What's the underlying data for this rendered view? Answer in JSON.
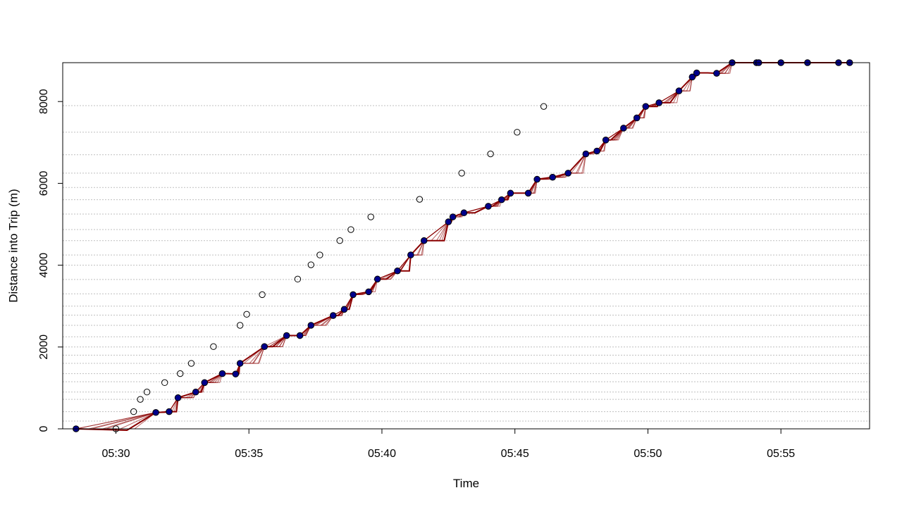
{
  "chart_data": {
    "type": "line",
    "title": "",
    "xlabel": "Time",
    "ylabel": "Distance into Trip (m)",
    "x_unit": "time of day (HH:MM)",
    "xlim": [
      "05:28:00",
      "05:58:20"
    ],
    "ylim": [
      0,
      8950
    ],
    "x_ticks": [
      "05:30",
      "05:35",
      "05:40",
      "05:45",
      "05:50",
      "05:55"
    ],
    "y_ticks": [
      0,
      2000,
      4000,
      6000,
      8000
    ],
    "y_tick_labels": [
      "0",
      "2000",
      "4000",
      "6000",
      "8000"
    ],
    "grid": "horizontal dotted lines at stop distances",
    "legend": "none",
    "colors": {
      "observations": "#00008b",
      "observation_outline": "#000000",
      "particle_paths": "#8b0000",
      "schedule_points": "#000000",
      "grid": "#bfbfbf",
      "frame": "#000000"
    },
    "stop_distances": [
      0,
      190,
      420,
      720,
      900,
      1150,
      1350,
      1600,
      1800,
      2000,
      2250,
      2530,
      2780,
      3000,
      3300,
      3650,
      4000,
      4250,
      4600,
      4870,
      5250,
      5600,
      5900,
      6250,
      6700,
      7250,
      7900,
      8950
    ],
    "series": [
      {
        "type": "scatter",
        "points": [
          {
            "t": "05:28:30",
            "d": 0
          },
          {
            "t": "05:31:30",
            "d": 400
          },
          {
            "t": "05:32:00",
            "d": 420
          },
          {
            "t": "05:32:20",
            "d": 760
          },
          {
            "t": "05:33:00",
            "d": 900
          },
          {
            "t": "05:33:20",
            "d": 1130
          },
          {
            "t": "05:34:00",
            "d": 1350
          },
          {
            "t": "05:34:30",
            "d": 1340
          },
          {
            "t": "05:34:40",
            "d": 1600
          },
          {
            "t": "05:35:35",
            "d": 2010
          },
          {
            "t": "05:36:25",
            "d": 2280
          },
          {
            "t": "05:36:55",
            "d": 2280
          },
          {
            "t": "05:37:20",
            "d": 2530
          },
          {
            "t": "05:38:10",
            "d": 2770
          },
          {
            "t": "05:38:35",
            "d": 2920
          },
          {
            "t": "05:38:55",
            "d": 3280
          },
          {
            "t": "05:39:30",
            "d": 3350
          },
          {
            "t": "05:39:50",
            "d": 3660
          },
          {
            "t": "05:40:35",
            "d": 3860
          },
          {
            "t": "05:41:05",
            "d": 4250
          },
          {
            "t": "05:41:35",
            "d": 4600
          },
          {
            "t": "05:42:30",
            "d": 5060
          },
          {
            "t": "05:42:40",
            "d": 5180
          },
          {
            "t": "05:43:05",
            "d": 5280
          },
          {
            "t": "05:44:00",
            "d": 5440
          },
          {
            "t": "05:44:30",
            "d": 5600
          },
          {
            "t": "05:44:50",
            "d": 5760
          },
          {
            "t": "05:45:30",
            "d": 5760
          },
          {
            "t": "05:45:50",
            "d": 6100
          },
          {
            "t": "05:46:25",
            "d": 6150
          },
          {
            "t": "05:47:00",
            "d": 6250
          },
          {
            "t": "05:47:40",
            "d": 6720
          },
          {
            "t": "05:48:05",
            "d": 6790
          },
          {
            "t": "05:48:25",
            "d": 7060
          },
          {
            "t": "05:49:05",
            "d": 7350
          },
          {
            "t": "05:49:35",
            "d": 7600
          },
          {
            "t": "05:49:55",
            "d": 7880
          },
          {
            "t": "05:50:25",
            "d": 7970
          },
          {
            "t": "05:51:10",
            "d": 8260
          },
          {
            "t": "05:51:40",
            "d": 8600
          },
          {
            "t": "05:51:50",
            "d": 8700
          },
          {
            "t": "05:52:35",
            "d": 8690
          },
          {
            "t": "05:53:10",
            "d": 8950
          },
          {
            "t": "05:54:05",
            "d": 8950
          },
          {
            "t": "05:54:10",
            "d": 8950
          },
          {
            "t": "05:55:00",
            "d": 8950
          },
          {
            "t": "05:56:00",
            "d": 8950
          },
          {
            "t": "05:57:10",
            "d": 8950
          },
          {
            "t": "05:57:35",
            "d": 8950
          }
        ]
      },
      {
        "type": "scatter",
        "points": [
          {
            "t": "05:30:00",
            "d": 0
          },
          {
            "t": "05:30:40",
            "d": 420
          },
          {
            "t": "05:30:55",
            "d": 720
          },
          {
            "t": "05:31:10",
            "d": 900
          },
          {
            "t": "05:31:50",
            "d": 1130
          },
          {
            "t": "05:32:25",
            "d": 1350
          },
          {
            "t": "05:32:50",
            "d": 1600
          },
          {
            "t": "05:33:40",
            "d": 2010
          },
          {
            "t": "05:34:40",
            "d": 2530
          },
          {
            "t": "05:34:55",
            "d": 2800
          },
          {
            "t": "05:35:30",
            "d": 3280
          },
          {
            "t": "05:36:50",
            "d": 3660
          },
          {
            "t": "05:37:20",
            "d": 4010
          },
          {
            "t": "05:37:40",
            "d": 4250
          },
          {
            "t": "05:38:25",
            "d": 4600
          },
          {
            "t": "05:38:50",
            "d": 4870
          },
          {
            "t": "05:39:35",
            "d": 5180
          },
          {
            "t": "05:41:25",
            "d": 5610
          },
          {
            "t": "05:43:00",
            "d": 6250
          },
          {
            "t": "05:44:05",
            "d": 6720
          },
          {
            "t": "05:45:05",
            "d": 7250
          },
          {
            "t": "05:46:05",
            "d": 7880
          }
        ]
      },
      {
        "type": "line",
        "paths": 12,
        "spread": "fan-out just below the observed points at stop waiting segments"
      }
    ]
  }
}
